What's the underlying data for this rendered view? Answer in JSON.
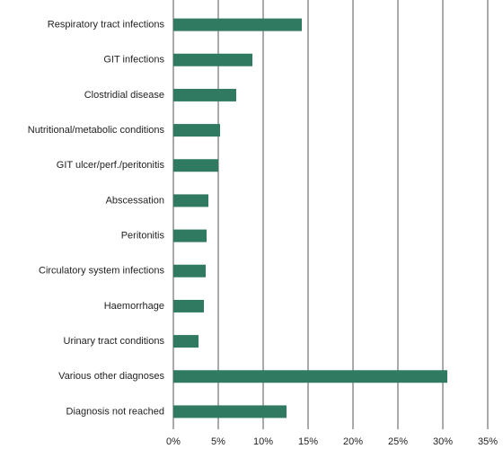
{
  "chart_data": {
    "type": "bar",
    "orientation": "horizontal",
    "categories": [
      "Respiratory tract infections",
      "GIT infections",
      "Clostridial disease",
      "Nutritional/metabolic conditions",
      "GIT ulcer/perf./peritonitis",
      "Abscessation",
      "Peritonitis",
      "Circulatory system infections",
      "Haemorrhage",
      "Urinary tract conditions",
      "Various other diagnoses",
      "Diagnosis not reached"
    ],
    "values": [
      14.3,
      8.8,
      7.0,
      5.2,
      5.0,
      3.9,
      3.7,
      3.6,
      3.4,
      2.8,
      30.5,
      12.6
    ],
    "color": "#2f7a60",
    "xlim": [
      0,
      35
    ],
    "xticks": [
      {
        "value": 0,
        "label": "0%"
      },
      {
        "value": 5,
        "label": "5%"
      },
      {
        "value": 10,
        "label": "10%"
      },
      {
        "value": 15,
        "label": "15%"
      },
      {
        "value": 20,
        "label": "20%"
      },
      {
        "value": 25,
        "label": "25%"
      },
      {
        "value": 30,
        "label": "30%"
      },
      {
        "value": 35,
        "label": "35%"
      }
    ],
    "grid": true
  }
}
